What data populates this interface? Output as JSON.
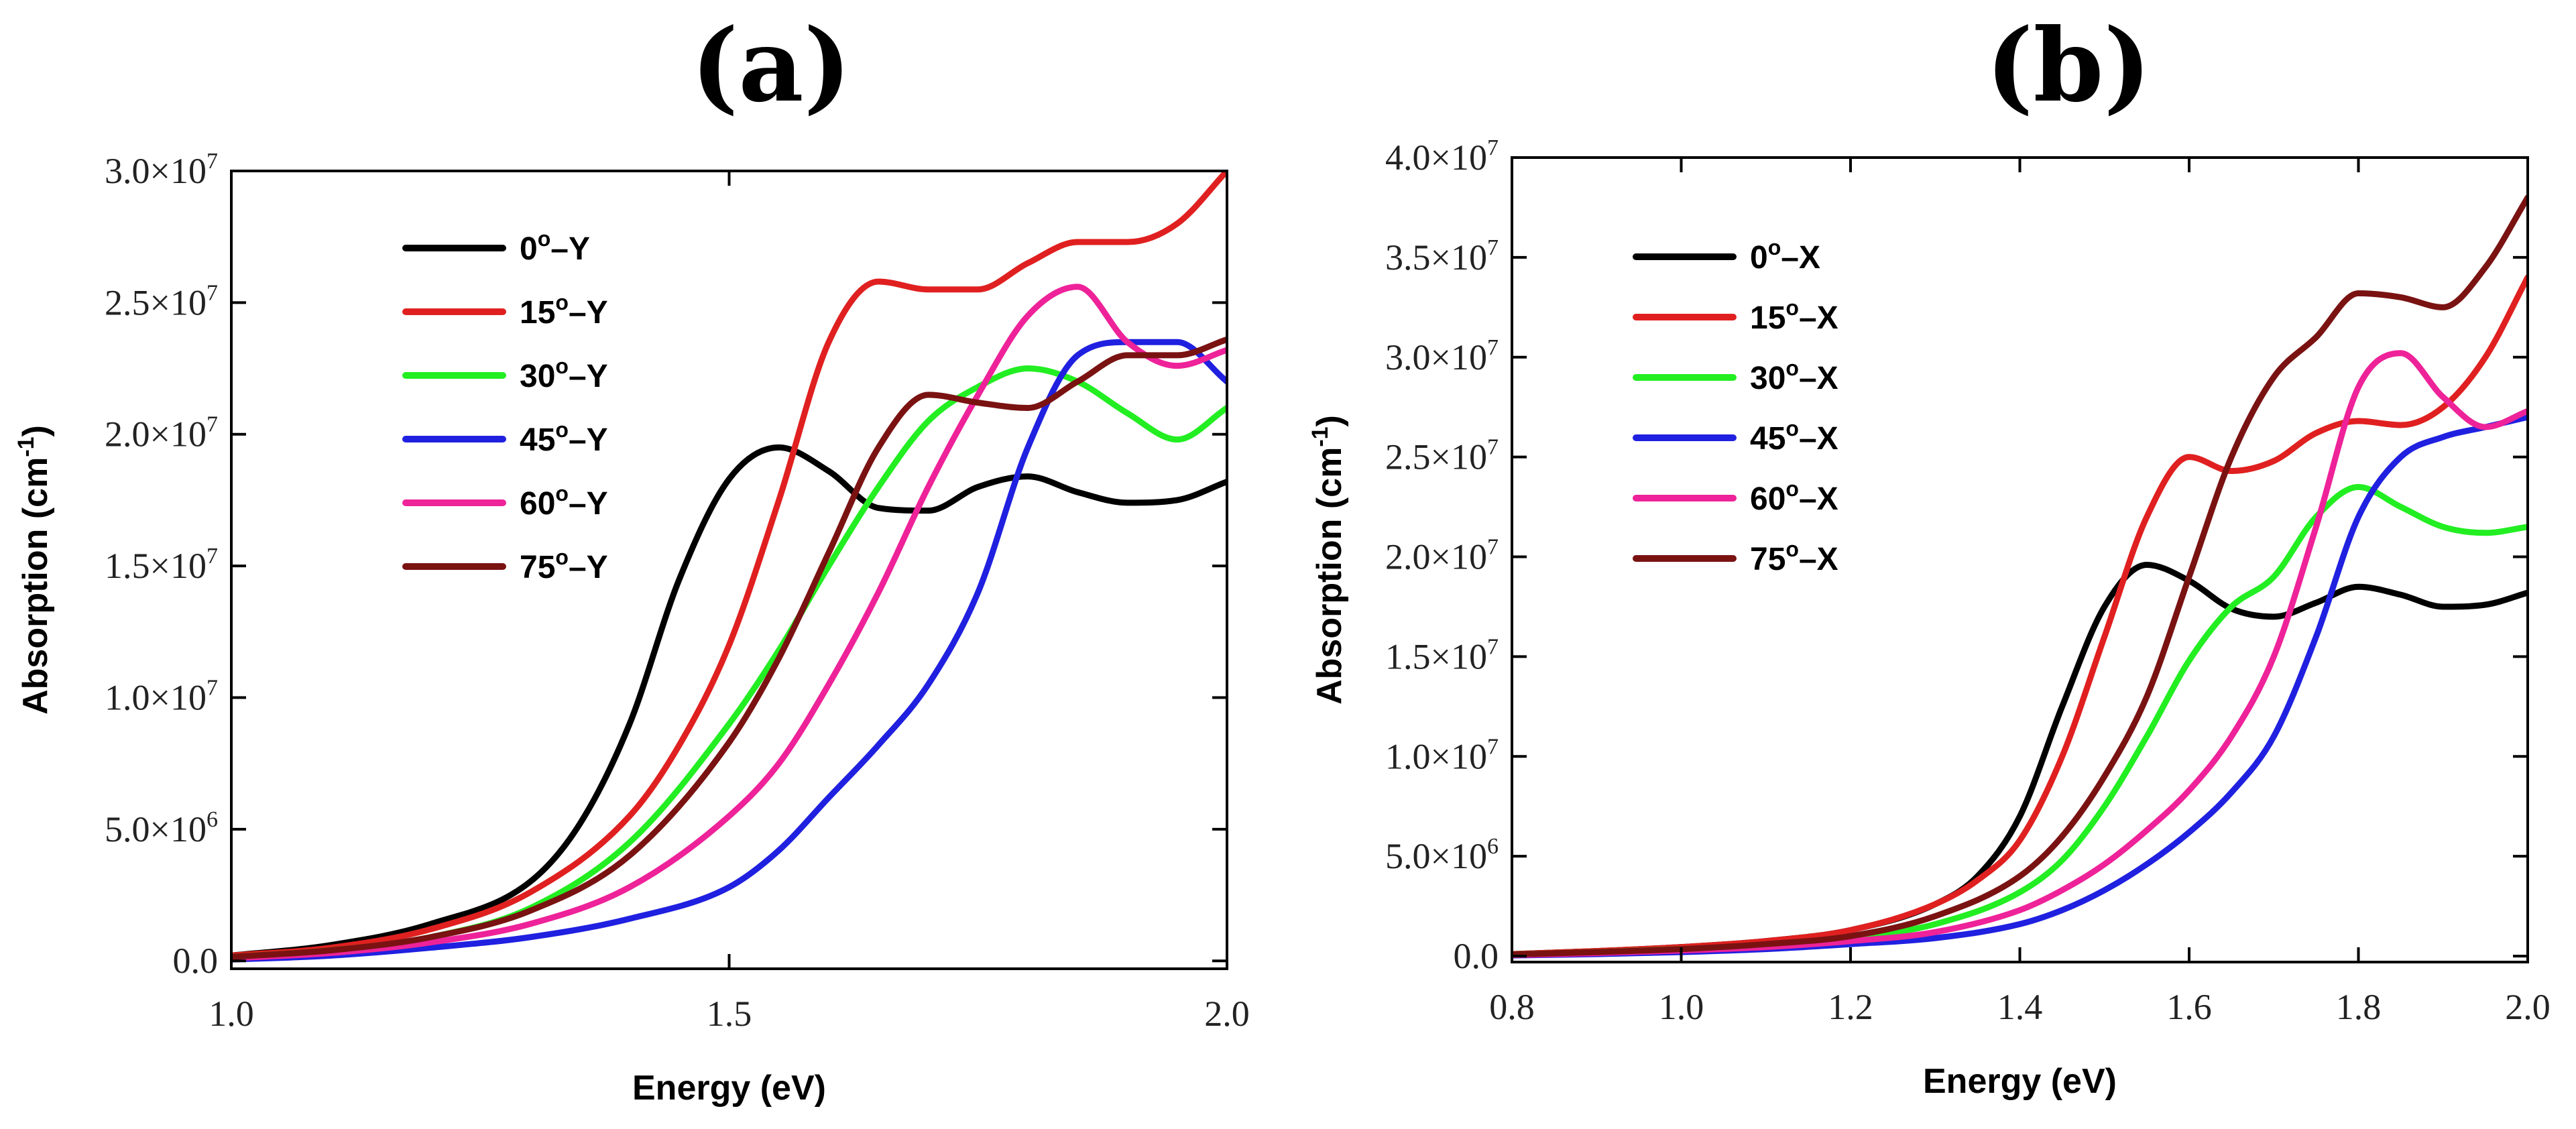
{
  "chart_data": [
    {
      "type": "line",
      "title": "(a)",
      "xlabel": "Energy (eV)",
      "ylabel": "Absorption (cm-1)",
      "ylabel_base": "Absorption (cm",
      "ylabel_sup": "-1",
      "ylabel_end": ")",
      "xlim": [
        1.0,
        2.0
      ],
      "ylim": [
        -300000,
        30000000
      ],
      "x_ticks": [
        1.0,
        1.5,
        2.0
      ],
      "x_tick_labels": [
        "1.0",
        "1.5",
        "2.0"
      ],
      "y_ticks": [
        0,
        5000000,
        10000000,
        15000000,
        20000000,
        25000000,
        30000000
      ],
      "y_tick_labels": [
        {
          "mant": "0.0",
          "exp": ""
        },
        {
          "mant": "5.0×10",
          "exp": "6"
        },
        {
          "mant": "1.0×10",
          "exp": "7"
        },
        {
          "mant": "1.5×10",
          "exp": "7"
        },
        {
          "mant": "2.0×10",
          "exp": "7"
        },
        {
          "mant": "2.5×10",
          "exp": "7"
        },
        {
          "mant": "3.0×10",
          "exp": "7"
        }
      ],
      "legend_position": "top-left",
      "series": [
        {
          "name": "0°–Y",
          "label_base": "0",
          "label_sup": "o",
          "label_end": "–Y",
          "color": "#000000",
          "x": [
            1.0,
            1.1,
            1.2,
            1.3,
            1.35,
            1.4,
            1.45,
            1.5,
            1.55,
            1.6,
            1.65,
            1.7,
            1.75,
            1.8,
            1.85,
            1.9,
            1.95,
            2.0
          ],
          "y": [
            0.2,
            0.6,
            1.4,
            3.0,
            5.2,
            9.0,
            14.5,
            18.3,
            19.5,
            18.6,
            17.2,
            17.1,
            18.0,
            18.4,
            17.8,
            17.4,
            17.5,
            18.2
          ]
        },
        {
          "name": "15°–Y",
          "label_base": "15",
          "label_sup": "o",
          "label_end": "–Y",
          "color": "#e02020",
          "x": [
            1.0,
            1.1,
            1.2,
            1.3,
            1.4,
            1.45,
            1.5,
            1.55,
            1.6,
            1.65,
            1.7,
            1.75,
            1.8,
            1.85,
            1.9,
            1.95,
            2.0
          ],
          "y": [
            0.2,
            0.5,
            1.2,
            2.6,
            5.5,
            8.2,
            12.0,
            17.5,
            23.5,
            25.8,
            25.5,
            25.5,
            26.5,
            27.3,
            27.3,
            28.0,
            30.0
          ]
        },
        {
          "name": "30°–Y",
          "label_base": "30",
          "label_sup": "o",
          "label_end": "–Y",
          "color": "#22ee22",
          "x": [
            1.0,
            1.1,
            1.2,
            1.3,
            1.4,
            1.5,
            1.55,
            1.6,
            1.65,
            1.7,
            1.75,
            1.8,
            1.85,
            1.9,
            1.95,
            2.0
          ],
          "y": [
            0.15,
            0.4,
            0.9,
            2.0,
            4.5,
            9.0,
            11.8,
            15.0,
            18.0,
            20.5,
            21.8,
            22.5,
            22.0,
            20.8,
            19.8,
            21.0
          ]
        },
        {
          "name": "45°–Y",
          "label_base": "45",
          "label_sup": "o",
          "label_end": "–Y",
          "color": "#2020e0",
          "x": [
            1.0,
            1.1,
            1.2,
            1.3,
            1.4,
            1.5,
            1.55,
            1.6,
            1.65,
            1.7,
            1.75,
            1.8,
            1.85,
            1.9,
            1.95,
            2.0
          ],
          "y": [
            0.05,
            0.2,
            0.5,
            0.9,
            1.6,
            2.8,
            4.2,
            6.2,
            8.2,
            10.5,
            14.0,
            19.5,
            23.0,
            23.5,
            23.5,
            22.0
          ]
        },
        {
          "name": "60°–Y",
          "label_base": "60",
          "label_sup": "o",
          "label_end": "–Y",
          "color": "#ee2299",
          "x": [
            1.0,
            1.1,
            1.2,
            1.3,
            1.4,
            1.5,
            1.55,
            1.6,
            1.65,
            1.7,
            1.75,
            1.8,
            1.85,
            1.9,
            1.95,
            2.0
          ],
          "y": [
            0.1,
            0.3,
            0.7,
            1.4,
            2.8,
            5.5,
            7.5,
            10.5,
            14.0,
            18.0,
            21.5,
            24.5,
            25.6,
            23.5,
            22.6,
            23.2
          ]
        },
        {
          "name": "75°–Y",
          "label_base": "75",
          "label_sup": "o",
          "label_end": "–Y",
          "color": "#7a1212",
          "x": [
            1.0,
            1.1,
            1.2,
            1.3,
            1.4,
            1.5,
            1.55,
            1.6,
            1.65,
            1.7,
            1.75,
            1.8,
            1.85,
            1.9,
            1.95,
            2.0
          ],
          "y": [
            0.15,
            0.4,
            0.9,
            1.9,
            4.0,
            8.3,
            11.5,
            15.5,
            19.5,
            21.5,
            21.2,
            21.0,
            22.0,
            23.0,
            23.0,
            23.6
          ]
        }
      ]
    },
    {
      "type": "line",
      "title": "(b)",
      "xlabel": "Energy (eV)",
      "ylabel": "Absorption (cm-1)",
      "ylabel_base": "Absorption (cm",
      "ylabel_sup": "-1",
      "ylabel_end": ")",
      "xlim": [
        0.8,
        2.0
      ],
      "ylim": [
        -300000,
        40000000
      ],
      "x_ticks": [
        0.8,
        1.0,
        1.2,
        1.4,
        1.6,
        1.8,
        2.0
      ],
      "x_tick_labels": [
        "0.8",
        "1.0",
        "1.2",
        "1.4",
        "1.6",
        "1.8",
        "2.0"
      ],
      "y_ticks": [
        0,
        5000000,
        10000000,
        15000000,
        20000000,
        25000000,
        30000000,
        35000000,
        40000000
      ],
      "y_tick_labels": [
        {
          "mant": "0.0",
          "exp": ""
        },
        {
          "mant": "5.0×10",
          "exp": "6"
        },
        {
          "mant": "1.0×10",
          "exp": "7"
        },
        {
          "mant": "1.5×10",
          "exp": "7"
        },
        {
          "mant": "2.0×10",
          "exp": "7"
        },
        {
          "mant": "2.5×10",
          "exp": "7"
        },
        {
          "mant": "3.0×10",
          "exp": "7"
        },
        {
          "mant": "3.5×10",
          "exp": "7"
        },
        {
          "mant": "4.0×10",
          "exp": "7"
        }
      ],
      "legend_position": "top-left",
      "series": [
        {
          "name": "0°–X",
          "label_base": "0",
          "label_sup": "o",
          "label_end": "–X",
          "color": "#000000",
          "x": [
            0.8,
            0.9,
            1.0,
            1.1,
            1.2,
            1.3,
            1.35,
            1.4,
            1.45,
            1.5,
            1.55,
            1.6,
            1.65,
            1.7,
            1.75,
            1.8,
            1.85,
            1.9,
            1.95,
            2.0
          ],
          "y": [
            0.1,
            0.25,
            0.45,
            0.75,
            1.3,
            2.6,
            4.0,
            7.0,
            12.5,
            17.5,
            19.6,
            18.8,
            17.4,
            17.0,
            17.7,
            18.5,
            18.1,
            17.5,
            17.6,
            18.2
          ]
        },
        {
          "name": "15°–X",
          "label_base": "15",
          "label_sup": "o",
          "label_end": "–X",
          "color": "#e02020",
          "x": [
            0.8,
            0.9,
            1.0,
            1.1,
            1.2,
            1.3,
            1.35,
            1.4,
            1.45,
            1.5,
            1.55,
            1.6,
            1.65,
            1.7,
            1.75,
            1.8,
            1.85,
            1.9,
            1.95,
            2.0
          ],
          "y": [
            0.1,
            0.25,
            0.45,
            0.75,
            1.3,
            2.6,
            3.8,
            5.8,
            10.0,
            16.0,
            22.0,
            25.0,
            24.3,
            24.8,
            26.2,
            26.8,
            26.6,
            27.5,
            30.0,
            34.0
          ]
        },
        {
          "name": "30°–X",
          "label_base": "30",
          "label_sup": "o",
          "label_end": "–X",
          "color": "#22ee22",
          "x": [
            0.8,
            0.9,
            1.0,
            1.1,
            1.2,
            1.3,
            1.4,
            1.45,
            1.5,
            1.55,
            1.6,
            1.65,
            1.7,
            1.75,
            1.8,
            1.85,
            1.9,
            1.95,
            2.0
          ],
          "y": [
            0.08,
            0.2,
            0.35,
            0.55,
            0.9,
            1.6,
            3.2,
            4.8,
            7.5,
            11.0,
            14.8,
            17.5,
            19.0,
            22.0,
            23.5,
            22.5,
            21.5,
            21.2,
            21.5
          ]
        },
        {
          "name": "45°–X",
          "label_base": "45",
          "label_sup": "o",
          "label_end": "–X",
          "color": "#2020e0",
          "x": [
            0.8,
            0.9,
            1.0,
            1.1,
            1.2,
            1.3,
            1.4,
            1.45,
            1.5,
            1.55,
            1.6,
            1.65,
            1.7,
            1.75,
            1.8,
            1.85,
            1.9,
            1.95,
            2.0
          ],
          "y": [
            0.03,
            0.1,
            0.2,
            0.35,
            0.6,
            0.9,
            1.6,
            2.3,
            3.3,
            4.6,
            6.2,
            8.2,
            11.0,
            16.0,
            22.0,
            25.0,
            26.0,
            26.5,
            27.0
          ]
        },
        {
          "name": "60°–X",
          "label_base": "60",
          "label_sup": "o",
          "label_end": "–X",
          "color": "#ee2299",
          "x": [
            0.8,
            0.9,
            1.0,
            1.1,
            1.2,
            1.3,
            1.4,
            1.45,
            1.5,
            1.55,
            1.6,
            1.65,
            1.7,
            1.75,
            1.8,
            1.85,
            1.9,
            1.95,
            2.0
          ],
          "y": [
            0.05,
            0.15,
            0.28,
            0.45,
            0.75,
            1.2,
            2.3,
            3.3,
            4.6,
            6.3,
            8.3,
            11.0,
            15.0,
            21.5,
            28.5,
            30.2,
            28.0,
            26.5,
            27.3
          ]
        },
        {
          "name": "75°–X",
          "label_base": "75",
          "label_sup": "o",
          "label_end": "–X",
          "color": "#7a1212",
          "x": [
            0.8,
            0.9,
            1.0,
            1.1,
            1.2,
            1.3,
            1.4,
            1.45,
            1.5,
            1.55,
            1.6,
            1.65,
            1.7,
            1.75,
            1.8,
            1.85,
            1.9,
            1.95,
            2.0
          ],
          "y": [
            0.08,
            0.2,
            0.35,
            0.6,
            1.0,
            2.0,
            4.0,
            6.0,
            9.0,
            13.0,
            19.0,
            25.0,
            29.0,
            31.0,
            33.2,
            33.0,
            32.5,
            34.5,
            38.0
          ]
        }
      ]
    }
  ]
}
